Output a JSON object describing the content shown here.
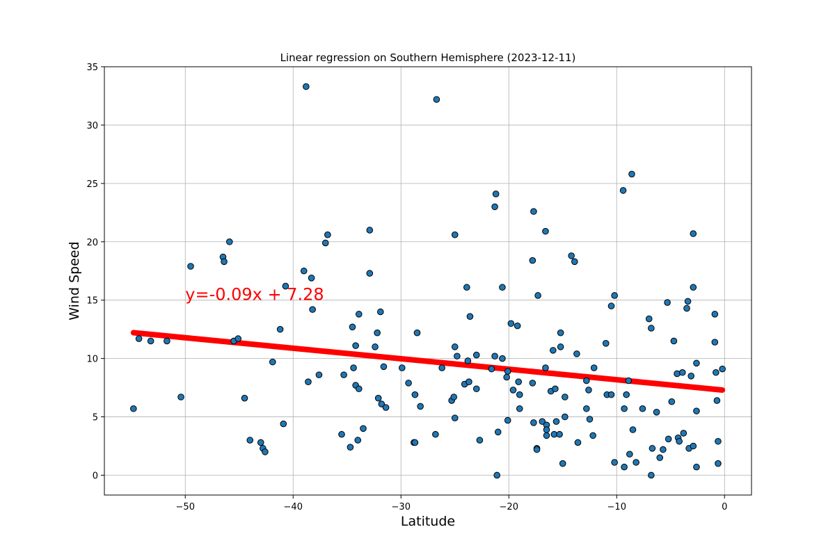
{
  "chart_data": {
    "type": "scatter",
    "title": "Linear regression on Southern Hemisphere (2023-12-11)",
    "xlabel": "Latitude",
    "ylabel": "Wind Speed",
    "xlim": [
      -57.5,
      2.5
    ],
    "ylim": [
      -1.7,
      35
    ],
    "xticks": [
      -50,
      -40,
      -30,
      -20,
      -10,
      0
    ],
    "xtick_labels": [
      "−50",
      "−40",
      "−30",
      "−20",
      "−10",
      "0"
    ],
    "yticks": [
      0,
      5,
      10,
      15,
      20,
      25,
      30,
      35
    ],
    "ytick_labels": [
      "0",
      "5",
      "10",
      "15",
      "20",
      "25",
      "30",
      "35"
    ],
    "grid": true,
    "points": [
      [
        -54.8,
        5.7
      ],
      [
        -54.3,
        11.7
      ],
      [
        -53.2,
        11.5
      ],
      [
        -51.7,
        11.5
      ],
      [
        -50.4,
        6.7
      ],
      [
        -49.5,
        17.9
      ],
      [
        -46.5,
        18.7
      ],
      [
        -46.4,
        18.3
      ],
      [
        -45.9,
        20.0
      ],
      [
        -45.5,
        11.5
      ],
      [
        -45.1,
        11.7
      ],
      [
        -44.5,
        6.6
      ],
      [
        -44.0,
        3.0
      ],
      [
        -43.0,
        2.8
      ],
      [
        -42.8,
        2.3
      ],
      [
        -42.6,
        2.0
      ],
      [
        -41.9,
        9.7
      ],
      [
        -41.2,
        12.5
      ],
      [
        -40.9,
        4.4
      ],
      [
        -40.7,
        16.2
      ],
      [
        -39.0,
        17.5
      ],
      [
        -38.8,
        33.3
      ],
      [
        -38.6,
        8.0
      ],
      [
        -38.3,
        16.9
      ],
      [
        -38.2,
        14.2
      ],
      [
        -37.6,
        8.6
      ],
      [
        -37.0,
        19.9
      ],
      [
        -36.8,
        20.6
      ],
      [
        -35.5,
        3.5
      ],
      [
        -35.3,
        8.6
      ],
      [
        -34.7,
        2.4
      ],
      [
        -34.5,
        12.7
      ],
      [
        -34.4,
        9.2
      ],
      [
        -34.2,
        7.7
      ],
      [
        -34.2,
        11.1
      ],
      [
        -34.0,
        3.0
      ],
      [
        -33.9,
        7.4
      ],
      [
        -33.9,
        13.8
      ],
      [
        -33.5,
        4.0
      ],
      [
        -32.9,
        21.0
      ],
      [
        -32.9,
        17.3
      ],
      [
        -32.4,
        11.0
      ],
      [
        -32.2,
        12.2
      ],
      [
        -32.1,
        6.6
      ],
      [
        -31.9,
        14.0
      ],
      [
        -31.8,
        6.1
      ],
      [
        -31.6,
        9.3
      ],
      [
        -31.4,
        5.8
      ],
      [
        -29.9,
        9.2
      ],
      [
        -29.3,
        7.9
      ],
      [
        -28.8,
        2.8
      ],
      [
        -28.7,
        2.8
      ],
      [
        -28.7,
        6.9
      ],
      [
        -28.5,
        12.2
      ],
      [
        -28.2,
        5.9
      ],
      [
        -26.7,
        32.2
      ],
      [
        -26.8,
        3.5
      ],
      [
        -26.2,
        9.2
      ],
      [
        -25.3,
        6.4
      ],
      [
        -25.1,
        6.7
      ],
      [
        -25.0,
        20.6
      ],
      [
        -25.0,
        4.9
      ],
      [
        -25.0,
        11.0
      ],
      [
        -24.8,
        10.2
      ],
      [
        -24.1,
        7.8
      ],
      [
        -23.9,
        16.1
      ],
      [
        -23.8,
        9.8
      ],
      [
        -23.7,
        8.0
      ],
      [
        -23.6,
        13.6
      ],
      [
        -23.0,
        10.3
      ],
      [
        -23.0,
        7.4
      ],
      [
        -22.7,
        3.0
      ],
      [
        -21.6,
        9.1
      ],
      [
        -21.3,
        10.2
      ],
      [
        -21.3,
        23.0
      ],
      [
        -21.2,
        24.1
      ],
      [
        -21.1,
        0.0
      ],
      [
        -21.0,
        3.7
      ],
      [
        -20.6,
        16.1
      ],
      [
        -20.6,
        10.0
      ],
      [
        -20.2,
        8.4
      ],
      [
        -20.1,
        8.9
      ],
      [
        -20.1,
        4.7
      ],
      [
        -19.8,
        13.0
      ],
      [
        -19.6,
        7.3
      ],
      [
        -19.2,
        12.8
      ],
      [
        -19.1,
        8.0
      ],
      [
        -19.0,
        6.9
      ],
      [
        -19.0,
        5.7
      ],
      [
        -17.8,
        18.4
      ],
      [
        -17.8,
        7.9
      ],
      [
        -17.7,
        4.5
      ],
      [
        -17.7,
        22.6
      ],
      [
        -17.4,
        2.3
      ],
      [
        -17.4,
        2.2
      ],
      [
        -17.3,
        15.4
      ],
      [
        -16.9,
        4.6
      ],
      [
        -16.6,
        9.2
      ],
      [
        -16.6,
        20.9
      ],
      [
        -16.5,
        4.3
      ],
      [
        -16.5,
        3.4
      ],
      [
        -16.5,
        3.9
      ],
      [
        -16.1,
        7.2
      ],
      [
        -15.9,
        10.7
      ],
      [
        -15.8,
        3.5
      ],
      [
        -15.7,
        7.4
      ],
      [
        -15.6,
        4.6
      ],
      [
        -15.3,
        3.5
      ],
      [
        -15.2,
        12.2
      ],
      [
        -15.2,
        11.0
      ],
      [
        -15.0,
        1.0
      ],
      [
        -14.8,
        6.7
      ],
      [
        -14.8,
        5.0
      ],
      [
        -14.2,
        18.8
      ],
      [
        -13.9,
        18.3
      ],
      [
        -13.7,
        10.4
      ],
      [
        -13.6,
        2.8
      ],
      [
        -12.8,
        8.1
      ],
      [
        -12.8,
        5.7
      ],
      [
        -12.6,
        7.3
      ],
      [
        -12.5,
        4.8
      ],
      [
        -12.2,
        3.4
      ],
      [
        -12.1,
        9.2
      ],
      [
        -11.0,
        11.3
      ],
      [
        -10.9,
        6.9
      ],
      [
        -10.5,
        6.9
      ],
      [
        -10.5,
        14.5
      ],
      [
        -10.2,
        15.4
      ],
      [
        -10.2,
        1.1
      ],
      [
        -9.4,
        24.4
      ],
      [
        -9.3,
        0.7
      ],
      [
        -9.3,
        5.7
      ],
      [
        -9.1,
        6.9
      ],
      [
        -8.9,
        8.1
      ],
      [
        -8.8,
        1.8
      ],
      [
        -8.6,
        25.8
      ],
      [
        -8.5,
        3.9
      ],
      [
        -8.2,
        1.1
      ],
      [
        -7.6,
        5.7
      ],
      [
        -7.0,
        13.4
      ],
      [
        -6.8,
        12.6
      ],
      [
        -6.8,
        0.0
      ],
      [
        -6.7,
        2.3
      ],
      [
        -6.3,
        5.4
      ],
      [
        -6.0,
        1.5
      ],
      [
        -5.7,
        2.2
      ],
      [
        -5.3,
        14.8
      ],
      [
        -5.2,
        3.1
      ],
      [
        -4.9,
        6.3
      ],
      [
        -4.7,
        11.5
      ],
      [
        -4.4,
        8.7
      ],
      [
        -4.3,
        3.2
      ],
      [
        -4.2,
        2.9
      ],
      [
        -3.9,
        8.8
      ],
      [
        -3.8,
        3.6
      ],
      [
        -3.5,
        14.3
      ],
      [
        -3.4,
        14.9
      ],
      [
        -3.3,
        2.3
      ],
      [
        -3.1,
        8.5
      ],
      [
        -2.9,
        2.5
      ],
      [
        -2.9,
        20.7
      ],
      [
        -2.9,
        16.1
      ],
      [
        -2.6,
        9.6
      ],
      [
        -2.6,
        5.5
      ],
      [
        -2.6,
        0.7
      ],
      [
        -0.9,
        13.8
      ],
      [
        -0.9,
        11.4
      ],
      [
        -0.8,
        8.8
      ],
      [
        -0.7,
        6.4
      ],
      [
        -0.6,
        2.9
      ],
      [
        -0.6,
        1.0
      ],
      [
        -0.2,
        9.1
      ]
    ],
    "marker_color": "#1f77b4",
    "marker_edge_color": "#000000",
    "regression": {
      "slope": -0.09,
      "intercept": 7.28,
      "x_range": [
        -54.8,
        -0.2
      ],
      "color": "#ff0000",
      "equation_label": "y=-0.09x + 7.28",
      "equation_anchor": [
        -50,
        15
      ]
    }
  }
}
